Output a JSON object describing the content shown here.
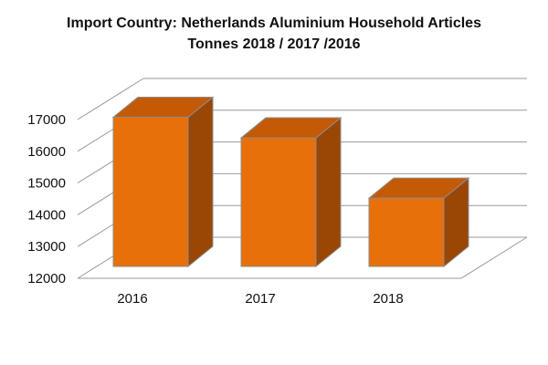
{
  "chart_data": {
    "type": "bar",
    "title": "Import Country: Netherlands Aluminium Household Articles",
    "subtitle": "Tonnes 2018 / 2017 /2016",
    "xlabel": "",
    "ylabel": "",
    "categories": [
      "2016",
      "2017",
      "2018"
    ],
    "values": [
      16700,
      16050,
      14150
    ],
    "ylim": [
      12000,
      17000
    ],
    "yticks": [
      "12000",
      "13000",
      "14000",
      "15000",
      "16000",
      "17000"
    ],
    "grid": true,
    "legend": "none",
    "colors": {
      "front": "#e8700a",
      "top": "#c45a06",
      "side": "#9a4604",
      "edge": "#8c8c8c",
      "grid": "#9a9a9a"
    }
  }
}
